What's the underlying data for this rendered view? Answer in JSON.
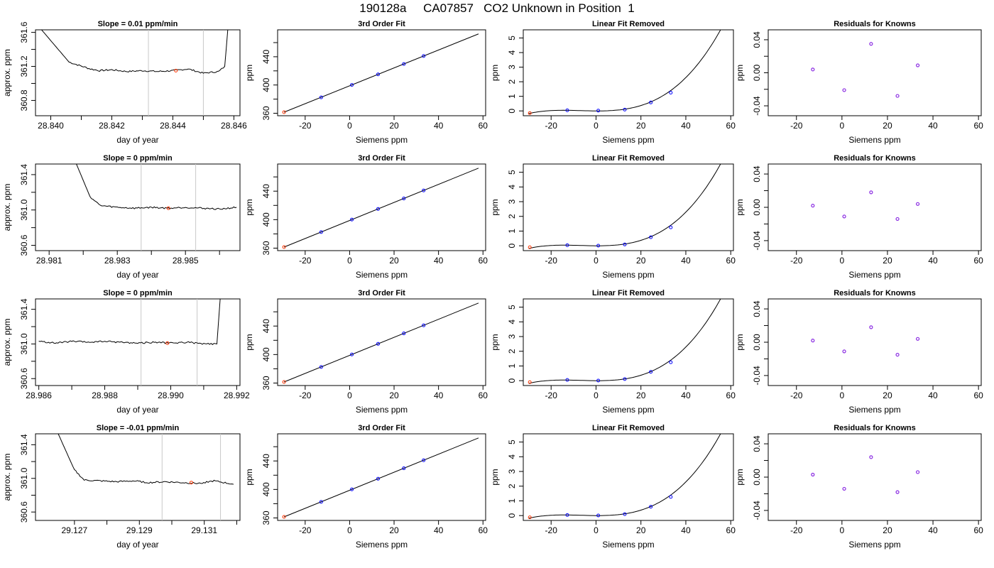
{
  "title": "190128a     CA07857   CO2 Unknown in Position  1",
  "colors": {
    "line": "#000000",
    "known_point": "#0000ff",
    "resid_point": "#8a2be2",
    "unknown_point": "#ff3300",
    "bracket_line": "#c8c8c8"
  },
  "chart_data": [
    {
      "type": "line",
      "row": 0,
      "col": 0,
      "title": "Slope =  0.01  ppm/min",
      "xlabel": "day of year",
      "ylabel": "approx. ppm",
      "xlim": [
        28.8395,
        28.8462
      ],
      "ylim": [
        360.62,
        361.63
      ],
      "xticks": [
        "28.840",
        "28.842",
        "28.844",
        "28.846"
      ],
      "xtick_values": [
        28.84,
        28.842,
        28.844,
        28.846
      ],
      "xminor": [
        28.841,
        28.843,
        28.845
      ],
      "yticks": [
        "360.8",
        "361.2",
        "361.6"
      ],
      "ytick_values": [
        360.8,
        361.2,
        361.6
      ],
      "yminor": [
        361.0,
        361.4
      ],
      "trace": {
        "x": [
          28.8397,
          28.8406,
          28.8413,
          28.8416,
          28.842,
          28.8425,
          28.843,
          28.8435,
          28.844,
          28.8445,
          28.845,
          28.8455,
          28.8457,
          28.8458
        ],
        "y": [
          361.63,
          361.25,
          361.17,
          361.15,
          361.16,
          361.14,
          361.15,
          361.14,
          361.15,
          361.17,
          361.12,
          361.14,
          361.2,
          361.63
        ]
      },
      "brackets": [
        28.8432,
        28.845
      ],
      "mean_point": {
        "x": 28.8441,
        "y": 361.15
      }
    },
    {
      "type": "scatter",
      "row": 0,
      "col": 1,
      "title": "3rd Order Fit",
      "xlabel": "Siemens ppm",
      "ylabel": "ppm",
      "xlim": [
        -32.4,
        61.2
      ],
      "ylim": [
        356.5,
        478.1
      ],
      "xticks": [
        "-20",
        "0",
        "20",
        "40",
        "60"
      ],
      "xtick_values": [
        -20,
        0,
        20,
        40,
        60
      ],
      "xminor": [],
      "yticks": [
        "360",
        "400",
        "440"
      ],
      "ytick_values": [
        360,
        400,
        440
      ],
      "yminor": [
        380,
        420,
        460
      ],
      "fit": {
        "type": "line",
        "x": [
          -29.5,
          58
        ],
        "y": [
          361.5,
          472.3
        ]
      },
      "known": {
        "x": [
          -12.8,
          1.0,
          12.8,
          24.4,
          33.3
        ],
        "y": [
          382.5,
          400.1,
          415.0,
          429.7,
          441.0
        ]
      },
      "unknown": {
        "x": [
          -29.5
        ],
        "y": [
          361.5
        ]
      }
    },
    {
      "type": "scatter",
      "row": 0,
      "col": 2,
      "title": "Linear Fit Removed",
      "xlabel": "Siemens ppm",
      "ylabel": "ppm",
      "xlim": [
        -32.4,
        61.2
      ],
      "ylim": [
        -0.33,
        5.56
      ],
      "xticks": [
        "-20",
        "0",
        "20",
        "40",
        "60"
      ],
      "xtick_values": [
        -20,
        0,
        20,
        40,
        60
      ],
      "xminor": [],
      "yticks": [
        "0",
        "1",
        "2",
        "3",
        "4",
        "5"
      ],
      "ytick_values": [
        0,
        1,
        2,
        3,
        4,
        5
      ],
      "yminor": [],
      "cubic": {
        "x_from": -30,
        "x_to": 58,
        "a": 2.4e-05,
        "b": 0.00049,
        "c": -0.00087,
        "d": 0.0
      },
      "known": {
        "x": [
          -12.8,
          1.0,
          12.8,
          24.4,
          33.3
        ],
        "y": [
          0.04,
          0.02,
          0.09,
          0.58,
          1.25
        ]
      },
      "unknown": {
        "x": [
          -29.5
        ],
        "y": [
          -0.15
        ]
      }
    },
    {
      "type": "scatter",
      "row": 0,
      "col": 3,
      "title": "Residuals for Knowns",
      "xlabel": "Siemens ppm",
      "ylabel": "ppm",
      "xlim": [
        -32.4,
        61.2
      ],
      "ylim": [
        -0.052,
        0.052
      ],
      "xticks": [
        "-20",
        "0",
        "20",
        "40",
        "60"
      ],
      "xtick_values": [
        -20,
        0,
        20,
        40,
        60
      ],
      "xminor": [],
      "yticks": [
        "-0.04",
        "0.00",
        "0.04"
      ],
      "ytick_values": [
        -0.04,
        0.0,
        0.04
      ],
      "yminor": [
        -0.02,
        0.02
      ],
      "resid": {
        "x": [
          -12.8,
          1.0,
          12.8,
          24.4,
          33.3
        ],
        "y": [
          0.004,
          -0.021,
          0.035,
          -0.028,
          0.009
        ]
      }
    },
    {
      "type": "line",
      "row": 1,
      "col": 0,
      "title": "Slope =  0  ppm/min",
      "xlabel": "day of year",
      "ylabel": "approx. ppm",
      "xlim": [
        28.9806,
        28.9866
      ],
      "ylim": [
        360.54,
        361.52
      ],
      "xticks": [
        "28.981",
        "28.983",
        "28.985"
      ],
      "xtick_values": [
        28.981,
        28.983,
        28.985
      ],
      "xminor": [
        28.982,
        28.984,
        28.986
      ],
      "yticks": [
        "360.6",
        "361.0",
        "361.4"
      ],
      "ytick_values": [
        360.6,
        361.0,
        361.4
      ],
      "yminor": [
        360.8,
        361.2
      ],
      "trace": {
        "x": [
          28.9818,
          28.9822,
          28.9825,
          28.983,
          28.9835,
          28.984,
          28.9845,
          28.985,
          28.9855,
          28.986,
          28.9865
        ],
        "y": [
          361.52,
          361.15,
          361.05,
          361.03,
          361.02,
          361.03,
          361.02,
          361.03,
          361.02,
          361.01,
          361.03
        ]
      },
      "brackets": [
        28.9837,
        28.9853
      ],
      "mean_point": {
        "x": 28.9845,
        "y": 361.02
      }
    },
    {
      "type": "scatter",
      "row": 1,
      "col": 1,
      "title": "3rd Order Fit",
      "xlabel": "Siemens ppm",
      "ylabel": "ppm",
      "xlim": [
        -32.4,
        61.2
      ],
      "ylim": [
        356.5,
        478.1
      ],
      "xticks": [
        "-20",
        "0",
        "20",
        "40",
        "60"
      ],
      "xtick_values": [
        -20,
        0,
        20,
        40,
        60
      ],
      "xminor": [],
      "yticks": [
        "360",
        "400",
        "440"
      ],
      "ytick_values": [
        360,
        400,
        440
      ],
      "yminor": [
        380,
        420,
        460
      ],
      "fit": {
        "type": "line",
        "x": [
          -29.5,
          58
        ],
        "y": [
          361.5,
          472.3
        ]
      },
      "known": {
        "x": [
          -12.8,
          1.0,
          12.8,
          24.4,
          33.3
        ],
        "y": [
          382.5,
          400.1,
          415.0,
          429.7,
          441.0
        ]
      },
      "unknown": {
        "x": [
          -29.5
        ],
        "y": [
          361.5
        ]
      }
    },
    {
      "type": "scatter",
      "row": 1,
      "col": 2,
      "title": "Linear Fit Removed",
      "xlabel": "Siemens ppm",
      "ylabel": "ppm",
      "xlim": [
        -32.4,
        61.2
      ],
      "ylim": [
        -0.33,
        5.56
      ],
      "xticks": [
        "-20",
        "0",
        "20",
        "40",
        "60"
      ],
      "xtick_values": [
        -20,
        0,
        20,
        40,
        60
      ],
      "xminor": [],
      "yticks": [
        "0",
        "1",
        "2",
        "3",
        "4",
        "5"
      ],
      "ytick_values": [
        0,
        1,
        2,
        3,
        4,
        5
      ],
      "yminor": [],
      "cubic": {
        "x_from": -30,
        "x_to": 58,
        "a": 2.4e-05,
        "b": 0.00049,
        "c": -0.00087,
        "d": 0.0
      },
      "known": {
        "x": [
          -12.8,
          1.0,
          12.8,
          24.4,
          33.3
        ],
        "y": [
          0.04,
          0.01,
          0.09,
          0.58,
          1.25
        ]
      },
      "unknown": {
        "x": [
          -29.5
        ],
        "y": [
          -0.1
        ]
      }
    },
    {
      "type": "scatter",
      "row": 1,
      "col": 3,
      "title": "Residuals for Knowns",
      "xlabel": "Siemens ppm",
      "ylabel": "ppm",
      "xlim": [
        -32.4,
        61.2
      ],
      "ylim": [
        -0.052,
        0.052
      ],
      "xticks": [
        "-20",
        "0",
        "20",
        "40",
        "60"
      ],
      "xtick_values": [
        -20,
        0,
        20,
        40,
        60
      ],
      "xminor": [],
      "yticks": [
        "-0.04",
        "0.00",
        "0.04"
      ],
      "ytick_values": [
        -0.04,
        0.0,
        0.04
      ],
      "yminor": [
        -0.02,
        0.02
      ],
      "resid": {
        "x": [
          -12.8,
          1.0,
          12.8,
          24.4,
          33.3
        ],
        "y": [
          0.002,
          -0.011,
          0.018,
          -0.014,
          0.004
        ]
      }
    },
    {
      "type": "line",
      "row": 2,
      "col": 0,
      "title": "Slope =  0  ppm/min",
      "xlabel": "day of year",
      "ylabel": "approx. ppm",
      "xlim": [
        28.9859,
        28.9921
      ],
      "ylim": [
        360.52,
        361.52
      ],
      "xticks": [
        "28.986",
        "28.988",
        "28.990",
        "28.992"
      ],
      "xtick_values": [
        28.986,
        28.988,
        28.99,
        28.992
      ],
      "xminor": [
        28.987,
        28.989,
        28.991
      ],
      "yticks": [
        "360.6",
        "361.0",
        "361.4"
      ],
      "ytick_values": [
        360.6,
        361.0,
        361.4
      ],
      "yminor": [
        360.8,
        361.2
      ],
      "trace": {
        "x": [
          28.986,
          28.9865,
          28.987,
          28.9875,
          28.988,
          28.9885,
          28.989,
          28.9895,
          28.99,
          28.9905,
          28.991,
          28.9914,
          28.9915
        ],
        "y": [
          361.03,
          361.01,
          361.03,
          361.02,
          361.03,
          361.02,
          361.01,
          361.02,
          361.01,
          361.02,
          361.0,
          361.0,
          361.52
        ]
      },
      "brackets": [
        28.9891,
        28.9908
      ],
      "mean_point": {
        "x": 28.9899,
        "y": 361.01
      }
    },
    {
      "type": "scatter",
      "row": 2,
      "col": 1,
      "title": "3rd Order Fit",
      "xlabel": "Siemens ppm",
      "ylabel": "ppm",
      "xlim": [
        -32.4,
        61.2
      ],
      "ylim": [
        356.5,
        478.1
      ],
      "xticks": [
        "-20",
        "0",
        "20",
        "40",
        "60"
      ],
      "xtick_values": [
        -20,
        0,
        20,
        40,
        60
      ],
      "xminor": [],
      "yticks": [
        "360",
        "400",
        "440"
      ],
      "ytick_values": [
        360,
        400,
        440
      ],
      "yminor": [
        380,
        420,
        460
      ],
      "fit": {
        "type": "line",
        "x": [
          -29.5,
          58
        ],
        "y": [
          361.5,
          472.3
        ]
      },
      "known": {
        "x": [
          -12.8,
          1.0,
          12.8,
          24.4,
          33.3
        ],
        "y": [
          382.5,
          400.1,
          415.0,
          429.7,
          441.0
        ]
      },
      "unknown": {
        "x": [
          -29.5
        ],
        "y": [
          361.5
        ]
      }
    },
    {
      "type": "scatter",
      "row": 2,
      "col": 2,
      "title": "Linear Fit Removed",
      "xlabel": "Siemens ppm",
      "ylabel": "ppm",
      "xlim": [
        -32.4,
        61.2
      ],
      "ylim": [
        -0.33,
        5.56
      ],
      "xticks": [
        "-20",
        "0",
        "20",
        "40",
        "60"
      ],
      "xtick_values": [
        -20,
        0,
        20,
        40,
        60
      ],
      "xminor": [],
      "yticks": [
        "0",
        "1",
        "2",
        "3",
        "4",
        "5"
      ],
      "ytick_values": [
        0,
        1,
        2,
        3,
        4,
        5
      ],
      "yminor": [],
      "cubic": {
        "x_from": -30,
        "x_to": 58,
        "a": 2.4e-05,
        "b": 0.00049,
        "c": -0.00087,
        "d": 0.0
      },
      "known": {
        "x": [
          -12.8,
          1.0,
          12.8,
          24.4,
          33.3
        ],
        "y": [
          0.05,
          0.01,
          0.11,
          0.6,
          1.25
        ]
      },
      "unknown": {
        "x": [
          -29.5
        ],
        "y": [
          -0.1
        ]
      }
    },
    {
      "type": "scatter",
      "row": 2,
      "col": 3,
      "title": "Residuals for Knowns",
      "xlabel": "Siemens ppm",
      "ylabel": "ppm",
      "xlim": [
        -32.4,
        61.2
      ],
      "ylim": [
        -0.052,
        0.052
      ],
      "xticks": [
        "-20",
        "0",
        "20",
        "40",
        "60"
      ],
      "xtick_values": [
        -20,
        0,
        20,
        40,
        60
      ],
      "xminor": [],
      "yticks": [
        "-0.04",
        "0.00",
        "0.04"
      ],
      "ytick_values": [
        -0.04,
        0.0,
        0.04
      ],
      "yminor": [
        -0.02,
        0.02
      ],
      "resid": {
        "x": [
          -12.8,
          1.0,
          12.8,
          24.4,
          33.3
        ],
        "y": [
          0.002,
          -0.011,
          0.018,
          -0.015,
          0.004
        ]
      }
    },
    {
      "type": "line",
      "row": 3,
      "col": 0,
      "title": "Slope =  -0.01  ppm/min",
      "xlabel": "day of year",
      "ylabel": "approx. ppm",
      "xlim": [
        29.1258,
        29.1321
      ],
      "ylim": [
        360.5,
        361.53
      ],
      "xticks": [
        "29.127",
        "29.129",
        "29.131"
      ],
      "xtick_values": [
        29.127,
        29.129,
        29.131
      ],
      "xminor": [
        29.128,
        29.13,
        29.132
      ],
      "yticks": [
        "360.6",
        "361.0",
        "361.4"
      ],
      "ytick_values": [
        360.6,
        361.0,
        361.4
      ],
      "yminor": [
        360.8,
        361.2
      ],
      "trace": {
        "x": [
          29.1265,
          29.127,
          29.1273,
          29.1278,
          29.1283,
          29.1288,
          29.1293,
          29.1298,
          29.1303,
          29.1308,
          29.1313,
          29.1319
        ],
        "y": [
          361.53,
          361.1,
          360.98,
          360.97,
          360.96,
          360.97,
          360.95,
          360.96,
          360.95,
          360.94,
          360.97,
          360.93
        ]
      },
      "brackets": [
        29.1297,
        29.1315
      ],
      "mean_point": {
        "x": 29.1306,
        "y": 360.95
      }
    },
    {
      "type": "scatter",
      "row": 3,
      "col": 1,
      "title": "3rd Order Fit",
      "xlabel": "Siemens ppm",
      "ylabel": "ppm",
      "xlim": [
        -32.4,
        61.2
      ],
      "ylim": [
        356.5,
        478.1
      ],
      "xticks": [
        "-20",
        "0",
        "20",
        "40",
        "60"
      ],
      "xtick_values": [
        -20,
        0,
        20,
        40,
        60
      ],
      "xminor": [],
      "yticks": [
        "360",
        "400",
        "440"
      ],
      "ytick_values": [
        360,
        400,
        440
      ],
      "yminor": [
        380,
        420,
        460
      ],
      "fit": {
        "type": "line",
        "x": [
          -29.5,
          58
        ],
        "y": [
          361.5,
          472.3
        ]
      },
      "known": {
        "x": [
          -12.8,
          1.0,
          12.8,
          24.4,
          33.3
        ],
        "y": [
          382.5,
          400.1,
          415.0,
          429.7,
          441.0
        ]
      },
      "unknown": {
        "x": [
          -29.5
        ],
        "y": [
          361.5
        ]
      }
    },
    {
      "type": "scatter",
      "row": 3,
      "col": 2,
      "title": "Linear Fit Removed",
      "xlabel": "Siemens ppm",
      "ylabel": "ppm",
      "xlim": [
        -32.4,
        61.2
      ],
      "ylim": [
        -0.33,
        5.56
      ],
      "xticks": [
        "-20",
        "0",
        "20",
        "40",
        "60"
      ],
      "xtick_values": [
        -20,
        0,
        20,
        40,
        60
      ],
      "xminor": [],
      "yticks": [
        "0",
        "1",
        "2",
        "3",
        "4",
        "5"
      ],
      "ytick_values": [
        0,
        1,
        2,
        3,
        4,
        5
      ],
      "yminor": [],
      "cubic": {
        "x_from": -30,
        "x_to": 58,
        "a": 2.4e-05,
        "b": 0.00049,
        "c": -0.00087,
        "d": 0.0
      },
      "known": {
        "x": [
          -12.8,
          1.0,
          12.8,
          24.4,
          33.3
        ],
        "y": [
          0.04,
          0.01,
          0.1,
          0.6,
          1.27
        ]
      },
      "unknown": {
        "x": [
          -29.5
        ],
        "y": [
          -0.12
        ]
      }
    },
    {
      "type": "scatter",
      "row": 3,
      "col": 3,
      "title": "Residuals for Knowns",
      "xlabel": "Siemens ppm",
      "ylabel": "ppm",
      "xlim": [
        -32.4,
        61.2
      ],
      "ylim": [
        -0.052,
        0.052
      ],
      "xticks": [
        "-20",
        "0",
        "20",
        "40",
        "60"
      ],
      "xtick_values": [
        -20,
        0,
        20,
        40,
        60
      ],
      "xminor": [],
      "yticks": [
        "-0.04",
        "0.00",
        "0.04"
      ],
      "ytick_values": [
        -0.04,
        0.0,
        0.04
      ],
      "yminor": [
        -0.02,
        0.02
      ],
      "resid": {
        "x": [
          -12.8,
          1.0,
          12.8,
          24.4,
          33.3
        ],
        "y": [
          0.003,
          -0.014,
          0.024,
          -0.018,
          0.006
        ]
      }
    }
  ]
}
